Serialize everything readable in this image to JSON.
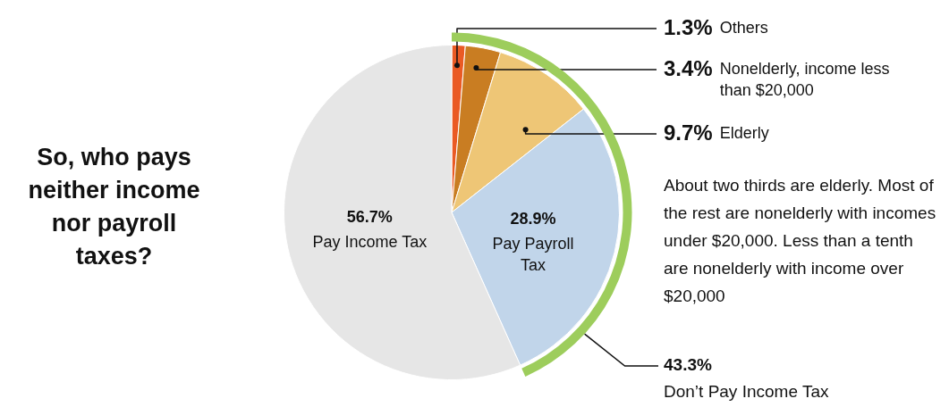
{
  "chart_data": {
    "type": "pie",
    "title": "So, who pays neither income nor payroll taxes?",
    "categories": [
      "Others",
      "Nonelderly, income less than $20,000",
      "Elderly",
      "Pay Payroll Tax",
      "Pay Income Tax"
    ],
    "values": [
      1.3,
      3.4,
      9.7,
      28.9,
      56.7
    ],
    "colors": [
      "#ea5a24",
      "#c97d22",
      "#eec676",
      "#c1d5ea",
      "#e6e6e6"
    ],
    "value_labels": [
      "1.3%",
      "3.4%",
      "9.7%",
      "28.9%",
      "56.7%"
    ],
    "legend": false,
    "annotations": [
      "About two thirds are elderly. Most of the rest are nonelderly with incomes under $20,000. Less than a tenth are nonelderly with income over $20,000",
      {
        "text": "43.3%\nDon’t Pay Income Tax",
        "x": "Pay Payroll Tax"
      }
    ]
  }
}
